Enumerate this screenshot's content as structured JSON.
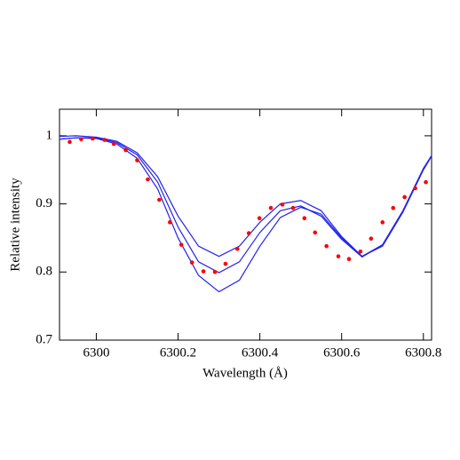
{
  "chart_data": {
    "type": "scatter",
    "x_label": "Wavelength (Å)",
    "y_label": "Relative intensity",
    "xlim": [
      6299.91,
      6300.82
    ],
    "ylim": [
      0.7,
      1.039
    ],
    "xticks": [
      6300,
      6300.2,
      6300.4,
      6300.6,
      6300.8
    ],
    "yticks": [
      0.7,
      0.8,
      0.9,
      1
    ],
    "points": {
      "color": "#ff0000",
      "x": [
        6299.935,
        6299.963,
        6299.991,
        6300.02,
        6300.043,
        6300.072,
        6300.1,
        6300.126,
        6300.154,
        6300.18,
        6300.208,
        6300.234,
        6300.262,
        6300.29,
        6300.316,
        6300.345,
        6300.373,
        6300.399,
        6300.427,
        6300.455,
        6300.481,
        6300.509,
        6300.535,
        6300.563,
        6300.592,
        6300.618,
        6300.646,
        6300.672,
        6300.7,
        6300.726,
        6300.754,
        6300.78,
        6300.806
      ],
      "values": [
        0.991,
        0.995,
        0.996,
        0.994,
        0.988,
        0.979,
        0.964,
        0.936,
        0.906,
        0.873,
        0.84,
        0.814,
        0.801,
        0.8,
        0.812,
        0.834,
        0.857,
        0.879,
        0.894,
        0.899,
        0.894,
        0.879,
        0.858,
        0.838,
        0.823,
        0.819,
        0.83,
        0.849,
        0.873,
        0.894,
        0.91,
        0.923,
        0.932
      ]
    },
    "lines": {
      "color": "#2222ee",
      "x": [
        6299.91,
        6299.95,
        6300.0,
        6300.05,
        6300.1,
        6300.15,
        6300.2,
        6300.25,
        6300.3,
        6300.35,
        6300.4,
        6300.45,
        6300.5,
        6300.55,
        6300.6,
        6300.65,
        6300.7,
        6300.75,
        6300.8,
        6300.82
      ],
      "series": [
        {
          "values": [
            0.999,
            1.0,
            0.998,
            0.992,
            0.975,
            0.94,
            0.882,
            0.838,
            0.823,
            0.838,
            0.873,
            0.9,
            0.905,
            0.89,
            0.852,
            0.823,
            0.838,
            0.888,
            0.95,
            0.97
          ]
        },
        {
          "values": [
            0.995,
            0.997,
            0.997,
            0.99,
            0.972,
            0.932,
            0.866,
            0.815,
            0.799,
            0.815,
            0.858,
            0.89,
            0.897,
            0.882,
            0.848,
            0.822,
            0.84,
            0.89,
            0.952,
            0.971
          ]
        },
        {
          "values": [
            0.995,
            0.997,
            0.996,
            0.988,
            0.967,
            0.922,
            0.85,
            0.795,
            0.771,
            0.788,
            0.838,
            0.88,
            0.895,
            0.885,
            0.85,
            0.823,
            0.84,
            0.89,
            0.952,
            0.971
          ]
        }
      ]
    }
  }
}
